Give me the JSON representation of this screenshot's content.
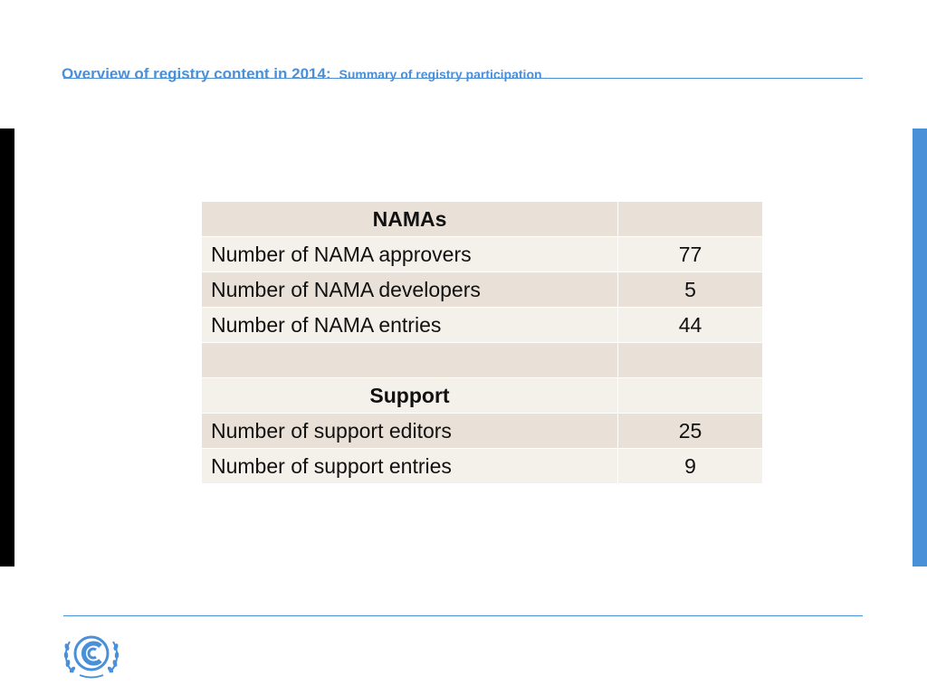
{
  "header": {
    "title": "Overview of registry content in 2014:",
    "subtitle": "Summary of registry participation"
  },
  "table": {
    "namas_heading": "NAMAs",
    "support_heading": "Support",
    "rows": [
      {
        "label": "Number of NAMA approvers",
        "value": "77"
      },
      {
        "label": "Number of NAMA developers",
        "value": "5"
      },
      {
        "label": "Number of NAMA entries",
        "value": "44"
      },
      {
        "label": "Number of support editors",
        "value": "25"
      },
      {
        "label": "Number of support entries",
        "value": "9"
      }
    ]
  },
  "colors": {
    "accent": "#4a90d9",
    "row_dark": "#e9e1d7",
    "row_light": "#f4f0ea"
  },
  "logo": {
    "icon": "unfccc-logo-icon"
  }
}
